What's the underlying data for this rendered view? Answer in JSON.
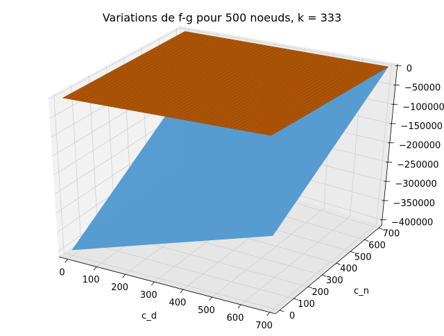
{
  "chart_data": {
    "type": "surface3d",
    "title": "Variations de f-g pour 500 noeuds, k = 333",
    "xlabel": "c_d",
    "ylabel": "c_n",
    "zlabel": "",
    "xlim": [
      -30,
      720
    ],
    "ylim": [
      -30,
      720
    ],
    "zlim": [
      -415000,
      5000
    ],
    "x_ticks": [
      0,
      100,
      200,
      300,
      400,
      500,
      600,
      700
    ],
    "y_ticks": [
      0,
      100,
      200,
      300,
      400,
      500,
      600,
      700
    ],
    "z_ticks": [
      0,
      -50000,
      -100000,
      -150000,
      -200000,
      -250000,
      -300000,
      -350000,
      -400000
    ],
    "x_tick_labels": [
      "0",
      "100",
      "200",
      "300",
      "400",
      "500",
      "600",
      "700"
    ],
    "y_tick_labels": [
      "0",
      "100",
      "200",
      "300",
      "400",
      "500",
      "600",
      "700"
    ],
    "z_tick_labels": [
      "0",
      "−50000",
      "−100000",
      "−150000",
      "−200000",
      "−250000",
      "−300000",
      "−350000",
      "−400000"
    ],
    "grid": true,
    "series": [
      {
        "color": "#b35806",
        "surface": {
          "x": [
            0,
            700
          ],
          "y": [
            0,
            700
          ],
          "z": [
            [
              0,
              0
            ],
            [
              0,
              0
            ]
          ]
        }
      },
      {
        "color": "#4f98cf",
        "surface": {
          "x": [
            0,
            700
          ],
          "y": [
            0,
            700
          ],
          "z": [
            [
              -400000,
              -160000
            ],
            [
              -240000,
              0
            ]
          ]
        }
      }
    ]
  }
}
